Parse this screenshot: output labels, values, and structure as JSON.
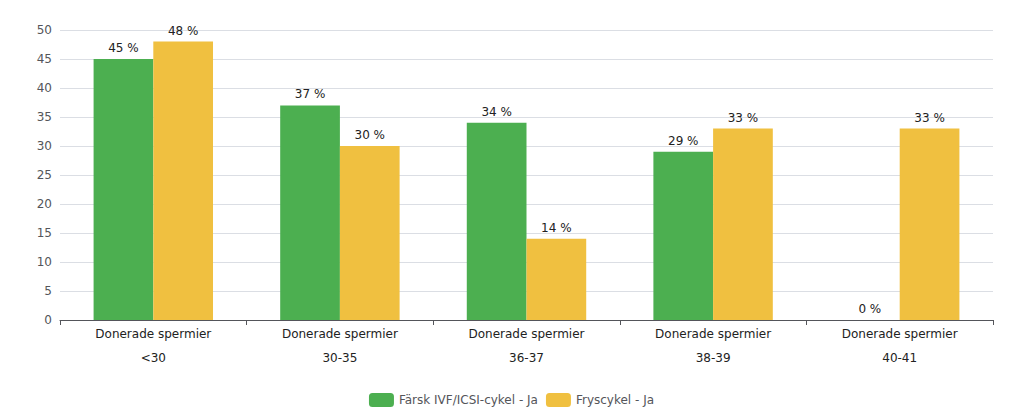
{
  "chart_data": {
    "type": "bar",
    "categories": [
      "<30",
      "30-35",
      "36-37",
      "38-39",
      "40-41"
    ],
    "annotations": [
      "Donerade spermier",
      "Donerade spermier",
      "Donerade spermier",
      "Donerade spermier",
      "Donerade spermier"
    ],
    "series": [
      {
        "name": "Färsk IVF/ICSI-cykel - Ja",
        "color": "#4caf50",
        "values": [
          45,
          37,
          34,
          29,
          0
        ],
        "value_labels": [
          "45 %",
          "37 %",
          "34 %",
          "29 %",
          "0 %"
        ]
      },
      {
        "name": "Fryscykel - Ja",
        "color": "#f0c040",
        "values": [
          48,
          30,
          14,
          33,
          33
        ],
        "value_labels": [
          "48 %",
          "30 %",
          "14 %",
          "33 %",
          "33 %"
        ]
      }
    ],
    "ylim": [
      0,
      50
    ],
    "yticks": [
      0,
      5,
      10,
      15,
      20,
      25,
      30,
      35,
      40,
      45,
      50
    ],
    "grid": true,
    "legend": "bottom",
    "data_labels": true
  }
}
